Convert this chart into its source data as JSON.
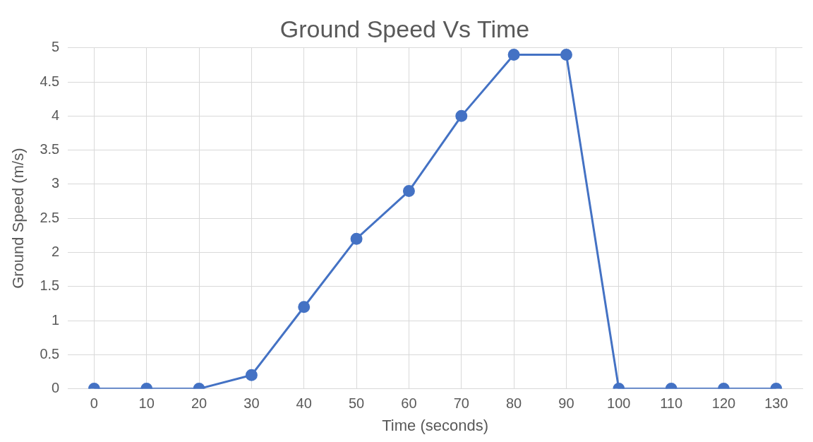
{
  "chart_data": {
    "type": "line",
    "title": "Ground Speed Vs Time",
    "xlabel": "Time (seconds)",
    "ylabel": "Ground Speed (m/s)",
    "categories": [
      "0",
      "10",
      "20",
      "30",
      "40",
      "50",
      "60",
      "70",
      "80",
      "90",
      "100",
      "110",
      "120",
      "130"
    ],
    "series": [
      {
        "color": "#4472c4",
        "values": [
          0,
          0,
          0,
          0.2,
          1.2,
          2.2,
          2.9,
          4.0,
          4.9,
          4.9,
          0,
          0,
          0,
          0
        ]
      }
    ],
    "ylim": [
      0,
      5
    ],
    "yticks": [
      0,
      0.5,
      1,
      1.5,
      2,
      2.5,
      3,
      3.5,
      4,
      4.5,
      5
    ],
    "grid": true,
    "legend": false,
    "marker": "circle",
    "line_style": "solid"
  }
}
